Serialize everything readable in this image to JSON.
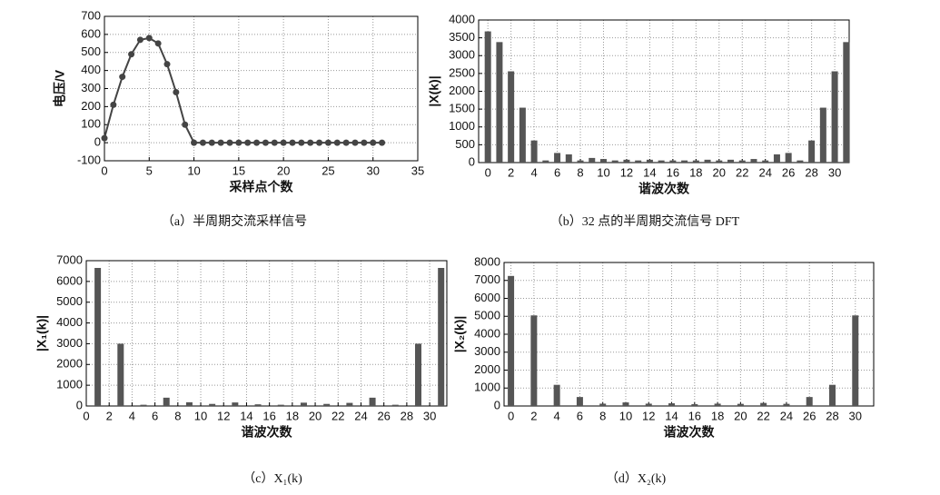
{
  "chart_data": [
    {
      "type": "line",
      "caption": "（a）半周期交流采样信号",
      "x_label": "采样点个数",
      "y_label": "电压/V",
      "color": "#444444",
      "x": [
        0,
        1,
        2,
        3,
        4,
        5,
        6,
        7,
        8,
        9,
        10,
        11,
        12,
        13,
        14,
        15,
        16,
        17,
        18,
        19,
        20,
        21,
        22,
        23,
        24,
        25,
        26,
        27,
        28,
        29,
        30,
        31
      ],
      "values": [
        25,
        210,
        365,
        490,
        570,
        580,
        550,
        435,
        280,
        100,
        0,
        0,
        0,
        0,
        0,
        0,
        0,
        0,
        0,
        0,
        0,
        0,
        0,
        0,
        0,
        0,
        0,
        0,
        0,
        0,
        0,
        0
      ],
      "xlim": [
        0,
        35
      ],
      "xticks": [
        0,
        5,
        10,
        15,
        20,
        25,
        30,
        35
      ],
      "ylim": [
        -100,
        700
      ],
      "yticks": [
        -100,
        0,
        100,
        200,
        300,
        400,
        500,
        600,
        700
      ],
      "grid": true
    },
    {
      "type": "bar",
      "caption": "（b）32 点的半周期交流信号 DFT",
      "x_label": "谐波次数",
      "y_label": "|X(k)|",
      "color": "#555555",
      "x": [
        0,
        1,
        2,
        3,
        4,
        5,
        6,
        7,
        8,
        9,
        10,
        11,
        12,
        13,
        14,
        15,
        16,
        17,
        18,
        19,
        20,
        21,
        22,
        23,
        24,
        25,
        26,
        27,
        28,
        29,
        30,
        31
      ],
      "values": [
        3680,
        3380,
        2560,
        1540,
        620,
        60,
        270,
        230,
        60,
        130,
        100,
        60,
        80,
        60,
        80,
        60,
        60,
        60,
        60,
        80,
        60,
        80,
        60,
        100,
        60,
        230,
        270,
        60,
        620,
        1540,
        2560,
        3380
      ],
      "xlim": [
        -0.8,
        31.25
      ],
      "xticks": [
        0,
        2,
        4,
        6,
        8,
        10,
        12,
        14,
        16,
        18,
        20,
        22,
        24,
        26,
        28,
        30
      ],
      "ylim": [
        0,
        4000
      ],
      "yticks": [
        0,
        500,
        1000,
        1500,
        2000,
        2500,
        3000,
        3500,
        4000
      ],
      "grid": true
    },
    {
      "type": "bar",
      "caption": "（c）X₁(k)",
      "x_label": "谐波次数",
      "y_label": "|X₁(k)|",
      "color": "#555555",
      "x": [
        1,
        3,
        5,
        7,
        9,
        11,
        13,
        15,
        17,
        19,
        21,
        23,
        25,
        27,
        29,
        31
      ],
      "values": [
        6650,
        3000,
        60,
        400,
        180,
        100,
        170,
        80,
        60,
        160,
        100,
        150,
        400,
        60,
        3000,
        6650
      ],
      "xlim": [
        0,
        31.5
      ],
      "xticks": [
        0,
        2,
        4,
        6,
        8,
        10,
        12,
        14,
        16,
        18,
        20,
        22,
        24,
        26,
        28,
        30
      ],
      "ylim": [
        0,
        7000
      ],
      "yticks": [
        0,
        1000,
        2000,
        3000,
        4000,
        5000,
        6000,
        7000
      ],
      "grid": true
    },
    {
      "type": "bar",
      "caption": "（d）X₂(k)",
      "x_label": "谐波次数",
      "y_label": "|X₂(k)|",
      "color": "#555555",
      "x": [
        0,
        2,
        4,
        6,
        8,
        10,
        12,
        14,
        16,
        18,
        20,
        22,
        24,
        26,
        28,
        30
      ],
      "values": [
        7250,
        5050,
        1180,
        500,
        130,
        200,
        130,
        150,
        100,
        130,
        120,
        170,
        120,
        500,
        1180,
        5050
      ],
      "xlim": [
        -0.6,
        31.6
      ],
      "xticks": [
        0,
        2,
        4,
        6,
        8,
        10,
        12,
        14,
        16,
        18,
        20,
        22,
        24,
        26,
        28,
        30
      ],
      "ylim": [
        0,
        8000
      ],
      "yticks": [
        0,
        1000,
        2000,
        3000,
        4000,
        5000,
        6000,
        7000,
        8000
      ],
      "grid": true
    }
  ]
}
